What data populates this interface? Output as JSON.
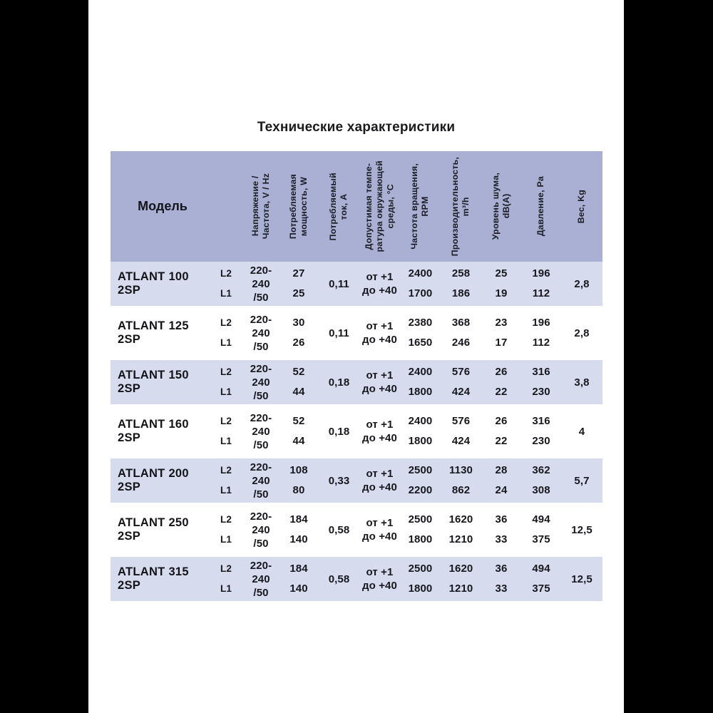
{
  "title": "Технические характеристики",
  "colors": {
    "canvas": "#000000",
    "panel": "#ffffff",
    "header_bg": "#a9b0d4",
    "row_shaded_bg": "#d7dbee",
    "text": "#17171d"
  },
  "table": {
    "model_header": "Модель",
    "columns": [
      {
        "key": "voltage",
        "label": "Напряжение /\nЧастота, V / Hz"
      },
      {
        "key": "power",
        "label": "Потребляемая\nмощность, W"
      },
      {
        "key": "current",
        "label": "Потребляемый\nток, А"
      },
      {
        "key": "temp",
        "label": "Допустимая темпе-\nратура окружающей\nсреды, °С"
      },
      {
        "key": "rpm",
        "label": "Частота вращения,\nRPM"
      },
      {
        "key": "airflow",
        "label": "Производительность,\nm³/h"
      },
      {
        "key": "noise",
        "label": "Уровень шума,\ndB(A)"
      },
      {
        "key": "pressure",
        "label": "Давление, Pa"
      },
      {
        "key": "weight",
        "label": "Вес, Kg"
      }
    ],
    "rows": [
      {
        "model": "ATLANT 100 2SP",
        "phases": [
          "L2",
          "L1"
        ],
        "voltage": "220-240\n/50",
        "power": [
          "27",
          "25"
        ],
        "current": "0,11",
        "temp": "от +1\nдо +40",
        "rpm": [
          "2400",
          "1700"
        ],
        "airflow": [
          "258",
          "186"
        ],
        "noise": [
          "25",
          "19"
        ],
        "pressure": [
          "196",
          "112"
        ],
        "weight": "2,8"
      },
      {
        "model": "ATLANT 125 2SP",
        "phases": [
          "L2",
          "L1"
        ],
        "voltage": "220-240\n/50",
        "power": [
          "30",
          "26"
        ],
        "current": "0,11",
        "temp": "от +1\nдо +40",
        "rpm": [
          "2380",
          "1650"
        ],
        "airflow": [
          "368",
          "246"
        ],
        "noise": [
          "23",
          "17"
        ],
        "pressure": [
          "196",
          "112"
        ],
        "weight": "2,8"
      },
      {
        "model": "ATLANT 150 2SP",
        "phases": [
          "L2",
          "L1"
        ],
        "voltage": "220-240\n/50",
        "power": [
          "52",
          "44"
        ],
        "current": "0,18",
        "temp": "от +1\nдо +40",
        "rpm": [
          "2400",
          "1800"
        ],
        "airflow": [
          "576",
          "424"
        ],
        "noise": [
          "26",
          "22"
        ],
        "pressure": [
          "316",
          "230"
        ],
        "weight": "3,8"
      },
      {
        "model": "ATLANT 160 2SP",
        "phases": [
          "L2",
          "L1"
        ],
        "voltage": "220-240\n/50",
        "power": [
          "52",
          "44"
        ],
        "current": "0,18",
        "temp": "от +1\nдо +40",
        "rpm": [
          "2400",
          "1800"
        ],
        "airflow": [
          "576",
          "424"
        ],
        "noise": [
          "26",
          "22"
        ],
        "pressure": [
          "316",
          "230"
        ],
        "weight": "4"
      },
      {
        "model": "ATLANT 200 2SP",
        "phases": [
          "L2",
          "L1"
        ],
        "voltage": "220-240\n/50",
        "power": [
          "108",
          "80"
        ],
        "current": "0,33",
        "temp": "от +1\nдо +40",
        "rpm": [
          "2500",
          "2200"
        ],
        "airflow": [
          "1130",
          "862"
        ],
        "noise": [
          "28",
          "24"
        ],
        "pressure": [
          "362",
          "308"
        ],
        "weight": "5,7"
      },
      {
        "model": "ATLANT 250 2SP",
        "phases": [
          "L2",
          "L1"
        ],
        "voltage": "220-240\n/50",
        "power": [
          "184",
          "140"
        ],
        "current": "0,58",
        "temp": "от +1\nдо +40",
        "rpm": [
          "2500",
          "1800"
        ],
        "airflow": [
          "1620",
          "1210"
        ],
        "noise": [
          "36",
          "33"
        ],
        "pressure": [
          "494",
          "375"
        ],
        "weight": "12,5"
      },
      {
        "model": "ATLANT 315 2SP",
        "phases": [
          "L2",
          "L1"
        ],
        "voltage": "220-240\n/50",
        "power": [
          "184",
          "140"
        ],
        "current": "0,58",
        "temp": "от +1\nдо +40",
        "rpm": [
          "2500",
          "1800"
        ],
        "airflow": [
          "1620",
          "1210"
        ],
        "noise": [
          "36",
          "33"
        ],
        "pressure": [
          "494",
          "375"
        ],
        "weight": "12,5"
      }
    ]
  }
}
